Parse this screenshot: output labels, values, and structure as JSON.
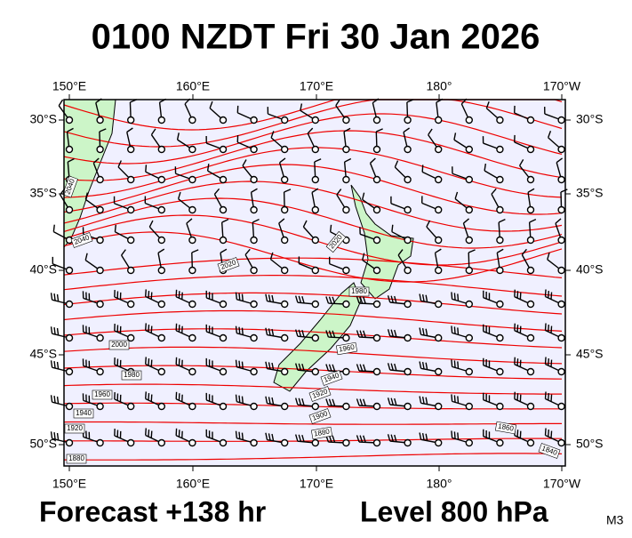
{
  "header": {
    "title": "0100 NZDT Fri 30 Jan 2026"
  },
  "axes": {
    "top_lon_labels": [
      "150°E",
      "160°E",
      "170°E",
      "180°",
      "170°W"
    ],
    "bottom_lon_labels": [
      "150°E",
      "160°E",
      "170°E",
      "180°",
      "170°W"
    ],
    "left_lat_labels": [
      "30°S",
      "35°S",
      "40°S",
      "45°S",
      "50°S"
    ],
    "right_lat_labels": [
      "30°S",
      "35°S",
      "40°S",
      "45°S",
      "50°S"
    ]
  },
  "contour_labels": [
    2040,
    2040,
    2020,
    2020,
    1980,
    1960,
    2000,
    1980,
    1960,
    1940,
    1920,
    1880,
    1940,
    1920,
    1900,
    1880,
    1860,
    1840
  ],
  "footer": {
    "forecast": "Forecast +138 hr",
    "level": "Level 800 hPa",
    "code": "M3"
  }
}
